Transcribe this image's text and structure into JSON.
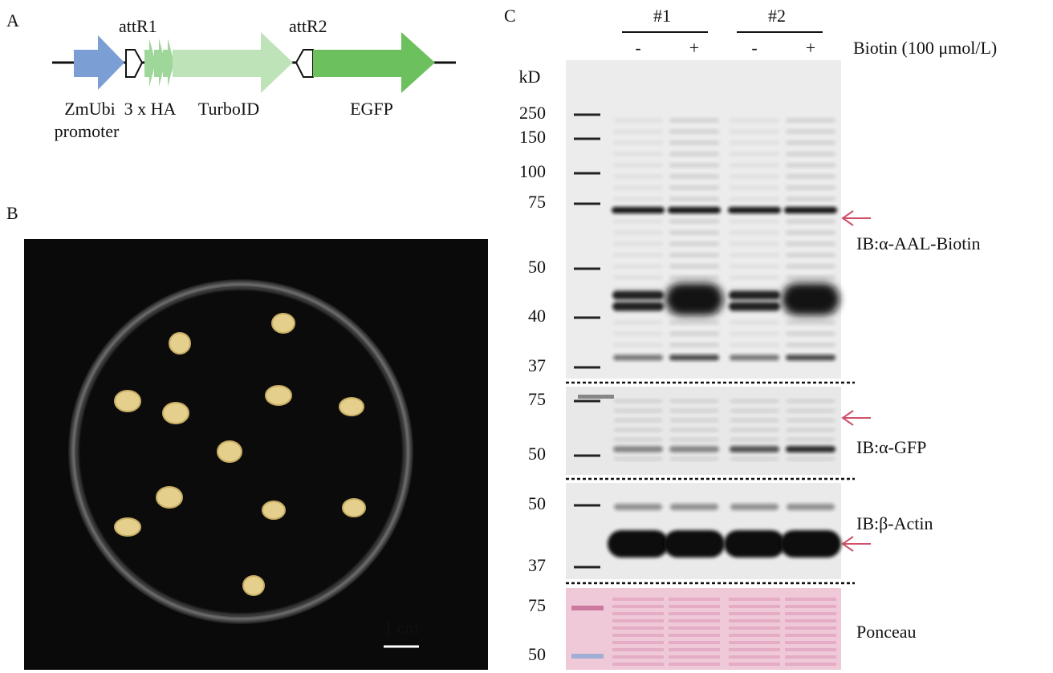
{
  "panel_a": {
    "label": "A",
    "att_sites": [
      "attR1",
      "attR2"
    ],
    "promoter": [
      "ZmUbi",
      "promoter"
    ],
    "elements": [
      "3 x HA",
      "TurboID",
      "EGFP"
    ]
  },
  "panel_b": {
    "label": "B",
    "scale_bar": "1 cm"
  },
  "panel_c": {
    "label": "C",
    "groups": [
      "#1",
      "#2"
    ],
    "treatments": [
      "-",
      "+",
      "-",
      "+"
    ],
    "treatment_label": "Biotin (100 μmol/L)",
    "marker_unit": "kD",
    "blots": [
      {
        "name": "IB:α-AAL-Biotin",
        "markers": [
          250,
          150,
          100,
          75,
          50,
          40,
          37
        ]
      },
      {
        "name": "IB:α-GFP",
        "markers": [
          75,
          50
        ]
      },
      {
        "name": "IB:β-Actin",
        "markers": [
          50,
          37
        ]
      },
      {
        "name": "Ponceau",
        "markers": [
          75,
          50
        ]
      }
    ]
  }
}
